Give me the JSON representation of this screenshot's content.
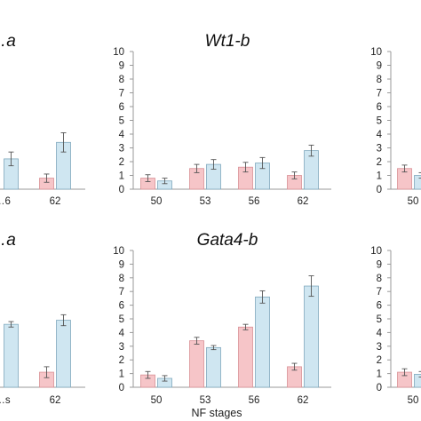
{
  "colors": {
    "pink": "#f6c5c8",
    "pink_edge": "#d98f95",
    "blue": "#cfe6f1",
    "blue_edge": "#7fa8bd",
    "axis": "#9a9a9a",
    "err": "#555555"
  },
  "x_axis_label": "NF stages",
  "chart_data": [
    {
      "type": "bar",
      "title": "…a",
      "categories": [
        "…6",
        "62"
      ],
      "series": [
        {
          "values": [
            null,
            0.8
          ]
        },
        {
          "values": [
            2.2,
            3.4
          ]
        }
      ],
      "errors": [
        [
          null,
          0.3
        ],
        [
          0.5,
          0.7
        ]
      ],
      "ylim": [
        0,
        10
      ]
    },
    {
      "type": "bar",
      "title": "Wt1-b",
      "categories": [
        "50",
        "53",
        "56",
        "62"
      ],
      "series": [
        {
          "values": [
            0.8,
            1.5,
            1.6,
            1.0
          ]
        },
        {
          "values": [
            0.6,
            1.8,
            1.9,
            2.8
          ]
        }
      ],
      "errors": [
        [
          0.25,
          0.3,
          0.35,
          0.25
        ],
        [
          0.2,
          0.35,
          0.4,
          0.4
        ]
      ],
      "ylim": [
        0,
        10
      ],
      "yticks": [
        "0",
        "1",
        "2",
        "3",
        "4",
        "5",
        "6",
        "7",
        "8",
        "9",
        "10"
      ]
    },
    {
      "type": "bar",
      "categories": [
        "50"
      ],
      "series": [
        {
          "values": [
            1.5
          ]
        },
        {
          "values": [
            1.0
          ]
        }
      ],
      "errors": [
        [
          0.25
        ],
        [
          0.2
        ]
      ],
      "ylim": [
        0,
        10
      ],
      "yticks": [
        "0",
        "1",
        "2",
        "3",
        "4",
        "5",
        "6",
        "7",
        "8",
        "9",
        "10"
      ]
    },
    {
      "type": "bar",
      "title": "…a",
      "categories": [
        "…s",
        "62"
      ],
      "series": [
        {
          "values": [
            null,
            1.1
          ]
        },
        {
          "values": [
            4.6,
            4.9
          ]
        }
      ],
      "errors": [
        [
          null,
          0.4
        ],
        [
          0.2,
          0.4
        ]
      ],
      "ylim": [
        0,
        10
      ]
    },
    {
      "type": "bar",
      "title": "Gata4-b",
      "categories": [
        "50",
        "53",
        "56",
        "62"
      ],
      "series": [
        {
          "values": [
            0.9,
            3.4,
            4.4,
            1.5
          ]
        },
        {
          "values": [
            0.65,
            2.9,
            6.6,
            7.4
          ]
        }
      ],
      "errors": [
        [
          0.25,
          0.25,
          0.2,
          0.25
        ],
        [
          0.2,
          0.15,
          0.45,
          0.75
        ]
      ],
      "ylim": [
        0,
        10
      ],
      "yticks": [
        "0",
        "1",
        "2",
        "3",
        "4",
        "5",
        "6",
        "7",
        "8",
        "9",
        "10"
      ]
    },
    {
      "type": "bar",
      "categories": [
        "50"
      ],
      "series": [
        {
          "values": [
            1.1
          ]
        },
        {
          "values": [
            0.95
          ]
        }
      ],
      "errors": [
        [
          0.25
        ],
        [
          0.2
        ]
      ],
      "ylim": [
        0,
        10
      ],
      "yticks": [
        "0",
        "1",
        "2",
        "3",
        "4",
        "5",
        "6",
        "7",
        "8",
        "9",
        "10"
      ]
    }
  ]
}
